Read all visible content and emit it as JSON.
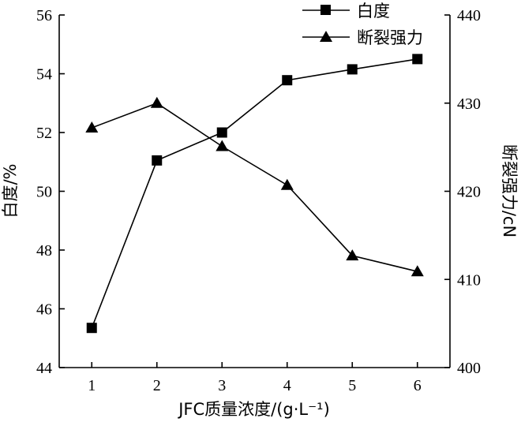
{
  "chart_data": {
    "type": "line",
    "x": [
      1,
      2,
      3,
      4,
      5,
      6
    ],
    "xlabel": "JFC质量浓度/(g·L⁻¹)",
    "xticks": [
      "1",
      "2",
      "3",
      "4",
      "5",
      "6"
    ],
    "xlim": [
      0.5,
      6.5
    ],
    "ylabel_left": "白度/%",
    "ylim_left": [
      44,
      56
    ],
    "yticks_left": [
      "44",
      "46",
      "48",
      "50",
      "52",
      "54",
      "56"
    ],
    "ylabel_right": "断裂强力/cN",
    "ylim_right": [
      400,
      440
    ],
    "yticks_right": [
      "400",
      "410",
      "420",
      "430",
      "440"
    ],
    "legend_position": "top-right",
    "series": [
      {
        "name": "白度",
        "axis": "left",
        "marker": "square",
        "color": "#000000",
        "values": [
          45.35,
          51.05,
          52.0,
          53.78,
          54.15,
          54.5
        ]
      },
      {
        "name": "断裂强力",
        "axis": "right",
        "marker": "triangle",
        "color": "#000000",
        "values": [
          427.2,
          430.0,
          425.1,
          420.7,
          412.7,
          410.9
        ]
      }
    ]
  }
}
